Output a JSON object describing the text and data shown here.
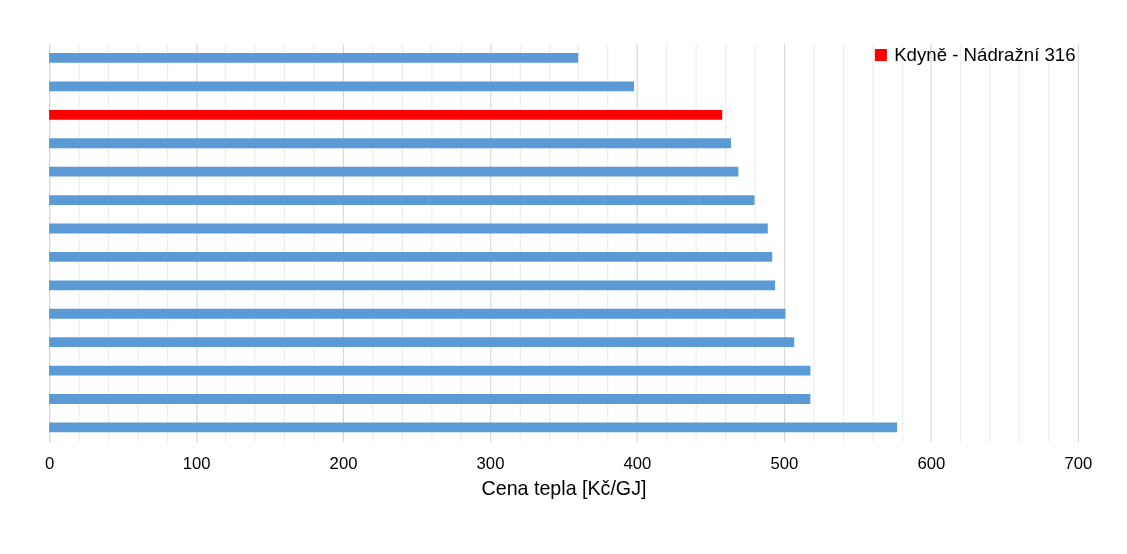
{
  "chart_data": {
    "type": "bar",
    "orientation": "horizontal",
    "xlabel": "Cena tepla [Kč/GJ]",
    "categories": [
      null,
      null,
      null,
      null,
      null,
      null,
      null,
      null,
      null,
      null,
      null,
      null,
      null,
      null
    ],
    "series": [
      {
        "color": "#5b9bd5",
        "values": [
          360,
          398,
          null,
          464,
          469,
          480,
          489,
          492,
          494,
          501,
          507,
          518,
          518,
          577
        ]
      },
      {
        "name": "Kdyně - Nádražní 316",
        "color": "#ff0000",
        "values": [
          null,
          null,
          458,
          null,
          null,
          null,
          null,
          null,
          null,
          null,
          null,
          null,
          null,
          null
        ]
      }
    ],
    "xlim": [
      0,
      700
    ],
    "xticks": [
      0,
      {
        "value": 20,
        "label": null
      },
      {
        "value": 40,
        "label": null
      },
      {
        "value": 60,
        "label": null
      },
      {
        "value": 80,
        "label": null
      },
      100,
      {
        "value": 120,
        "label": null
      },
      {
        "value": 140,
        "label": null
      },
      {
        "value": 160,
        "label": null
      },
      {
        "value": 180,
        "label": null
      },
      200,
      {
        "value": 220,
        "label": null
      },
      {
        "value": 240,
        "label": null
      },
      {
        "value": 260,
        "label": null
      },
      {
        "value": 280,
        "label": null
      },
      300,
      {
        "value": 320,
        "label": null
      },
      {
        "value": 340,
        "label": null
      },
      {
        "value": 360,
        "label": null
      },
      {
        "value": 380,
        "label": null
      },
      400,
      {
        "value": 420,
        "label": null
      },
      {
        "value": 440,
        "label": null
      },
      {
        "value": 460,
        "label": null
      },
      {
        "value": 480,
        "label": null
      },
      500,
      {
        "value": 520,
        "label": null
      },
      {
        "value": 540,
        "label": null
      },
      {
        "value": 560,
        "label": null
      },
      {
        "value": 580,
        "label": null
      },
      600,
      {
        "value": 620,
        "label": null
      },
      {
        "value": 640,
        "label": null
      },
      {
        "value": 660,
        "label": null
      },
      {
        "value": 680,
        "label": null
      },
      700
    ],
    "grid": "x",
    "legend": "top right",
    "tick_labels": "x"
  }
}
